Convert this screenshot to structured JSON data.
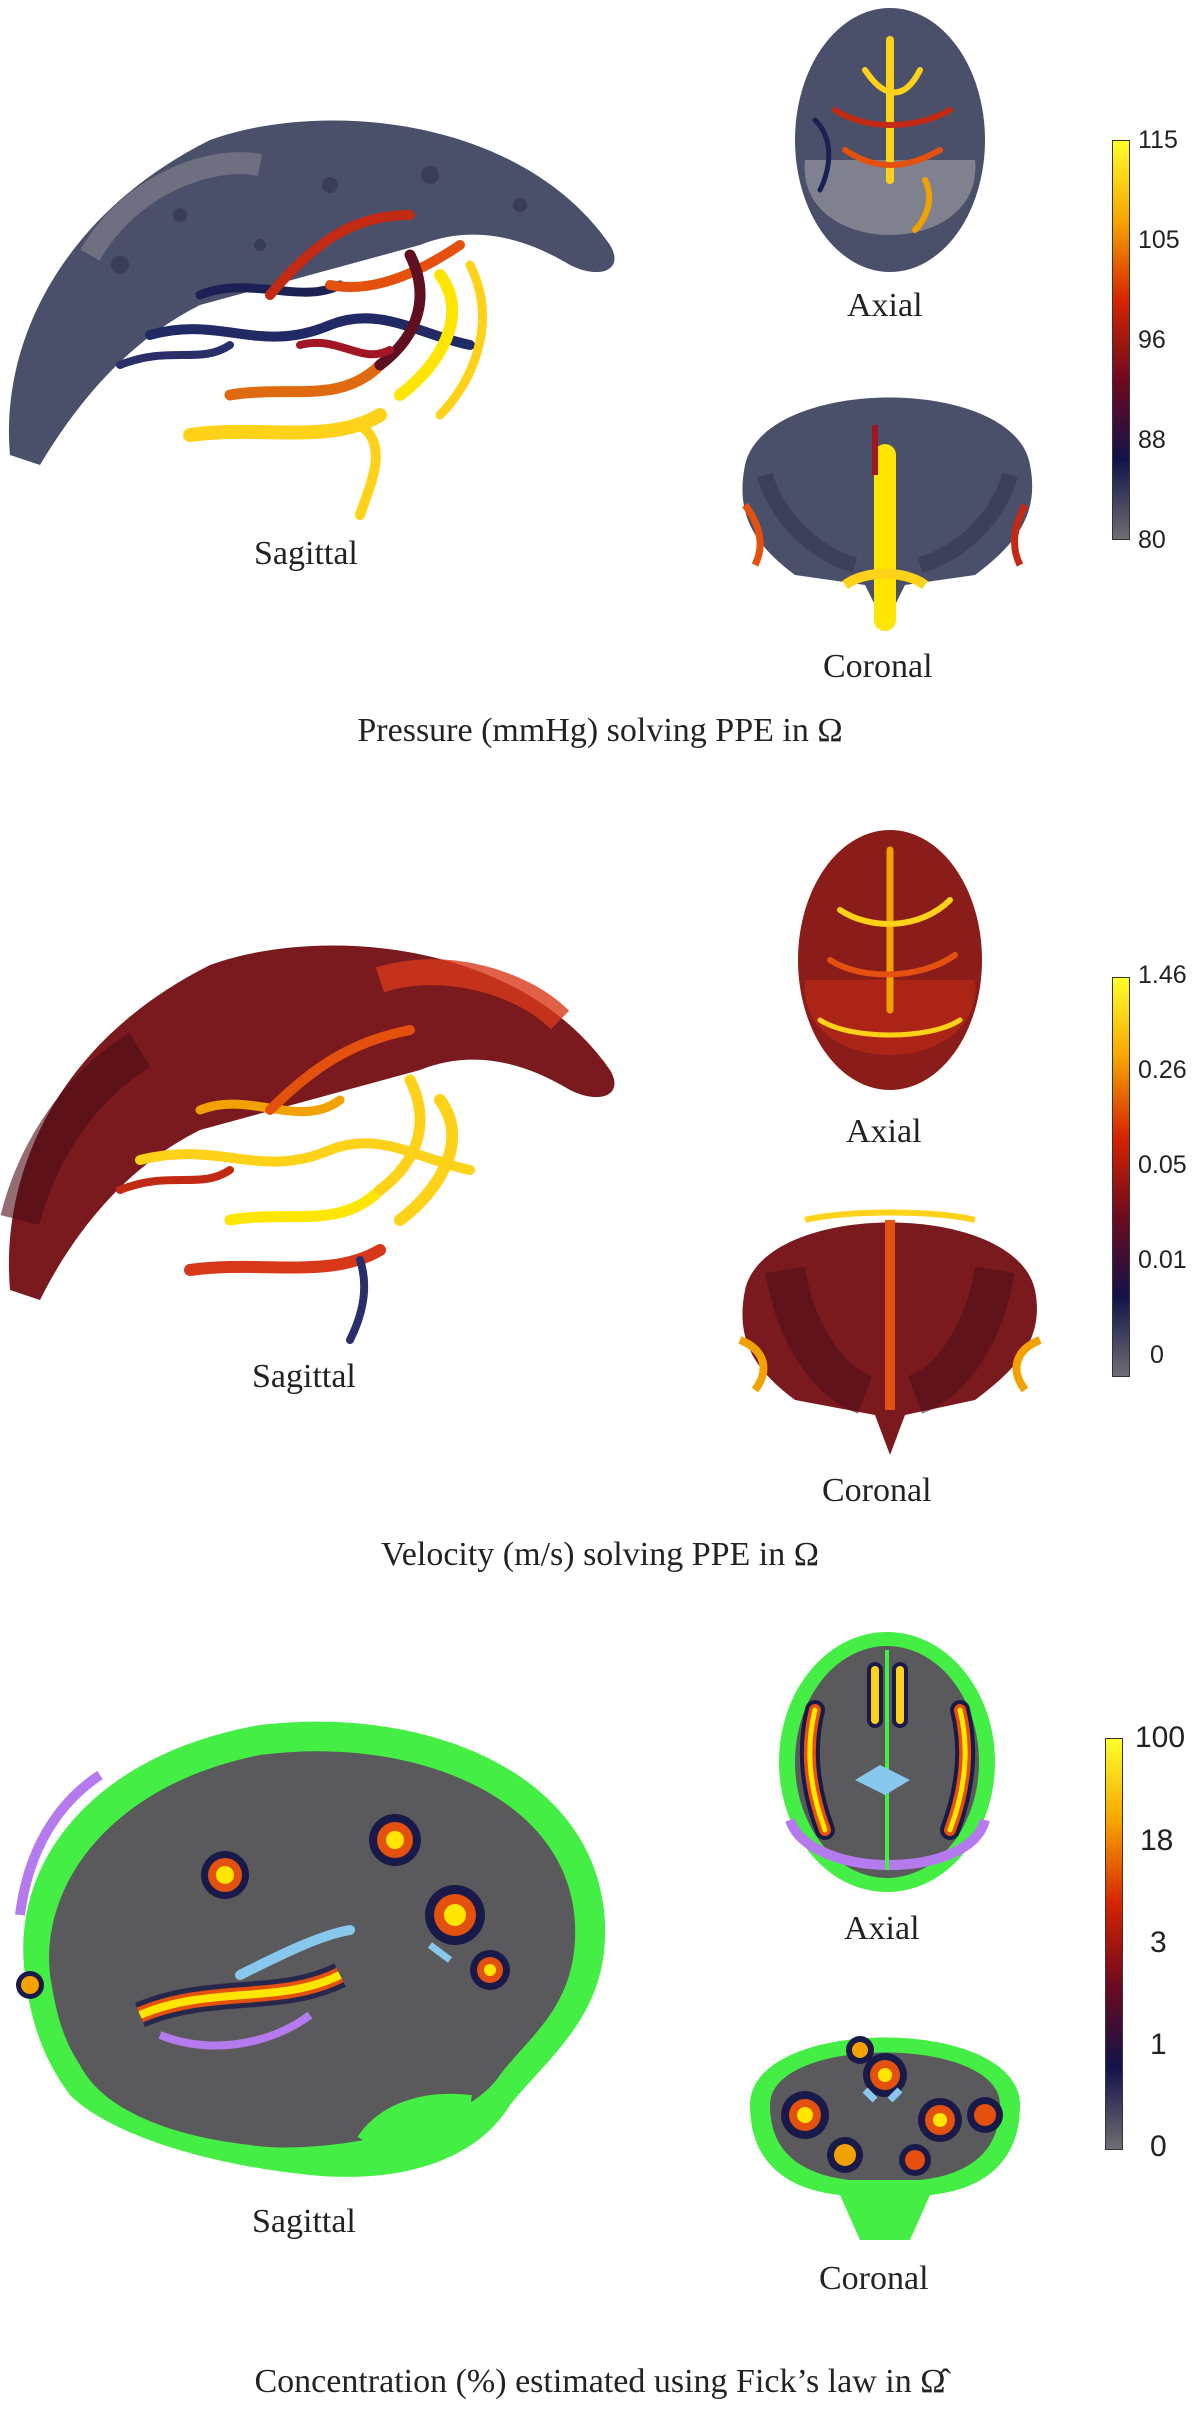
{
  "panels": [
    {
      "labels": {
        "sagittal": "Sagittal",
        "axial": "Axial",
        "coronal": "Coronal"
      },
      "caption": "Pressure (mmHg) solving PPE in Ω",
      "colorbar": {
        "ticks": [
          "115",
          "105",
          "96",
          "88",
          "80"
        ],
        "colors": [
          "#ffff2a",
          "#f7a400",
          "#d62400",
          "#6e0a1e",
          "#12124a",
          "#6e6e72"
        ]
      }
    },
    {
      "labels": {
        "sagittal": "Sagittal",
        "axial": "Axial",
        "coronal": "Coronal"
      },
      "caption": "Velocity (m/s) solving PPE in Ω",
      "colorbar": {
        "ticks": [
          "1.46",
          "0.26",
          "0.05",
          "0.01",
          "0"
        ],
        "colors": [
          "#ffff2a",
          "#f7a400",
          "#d62400",
          "#6e0a1e",
          "#12124a",
          "#6e6e72"
        ]
      }
    },
    {
      "labels": {
        "sagittal": "Sagittal",
        "axial": "Axial",
        "coronal": "Coronal"
      },
      "caption": "Concentration (%) estimated using Fick’s law in Ω̂",
      "colorbar": {
        "ticks": [
          "100",
          "18",
          "3",
          "1",
          "0"
        ],
        "colors": [
          "#ffff2a",
          "#f7a400",
          "#d62400",
          "#6e0a1e",
          "#12124a",
          "#6e6e72"
        ]
      }
    }
  ],
  "palette": {
    "vessel_gray": "#4a4f6a",
    "pressure_high": "#ffd21a",
    "velocity_red": "#c8281e",
    "tissue_gray": "#5a5a5c",
    "csf_green": "#44ee44",
    "purple": "#b57aee",
    "blue": "#88c8ee"
  }
}
